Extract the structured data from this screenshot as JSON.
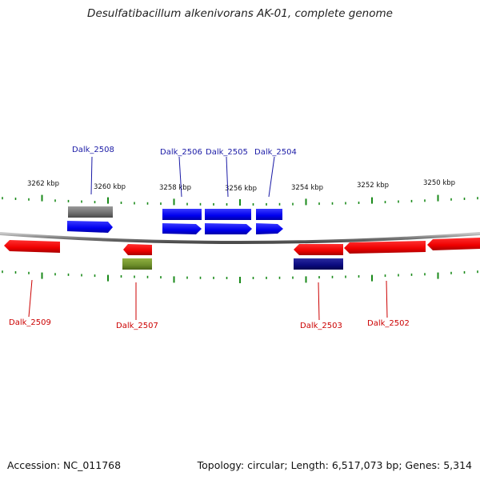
{
  "title": "Desulfatibacillum alkenivorans AK-01, complete genome",
  "footer": {
    "accession": "Accession: NC_011768",
    "summary": "Topology: circular; Length: 6,517,073 bp; Genes: 5,314"
  },
  "colors": {
    "forward_label": "#1a1aa6",
    "reverse_label": "#cc0000",
    "tick": "#1a8a1a",
    "backbone": "#8a8a8a"
  },
  "kbp_labels": [
    "3262 kbp",
    "3260 kbp",
    "3258 kbp",
    "3256 kbp",
    "3254 kbp",
    "3252 kbp",
    "3250 kbp"
  ],
  "genes": [
    {
      "name": "Dalk_2508",
      "strand": "+"
    },
    {
      "name": "Dalk_2506",
      "strand": "+"
    },
    {
      "name": "Dalk_2505",
      "strand": "+"
    },
    {
      "name": "Dalk_2504",
      "strand": "+"
    },
    {
      "name": "Dalk_2509",
      "strand": "-"
    },
    {
      "name": "Dalk_2507",
      "strand": "-"
    },
    {
      "name": "Dalk_2503",
      "strand": "-"
    },
    {
      "name": "Dalk_2502",
      "strand": "-"
    }
  ]
}
